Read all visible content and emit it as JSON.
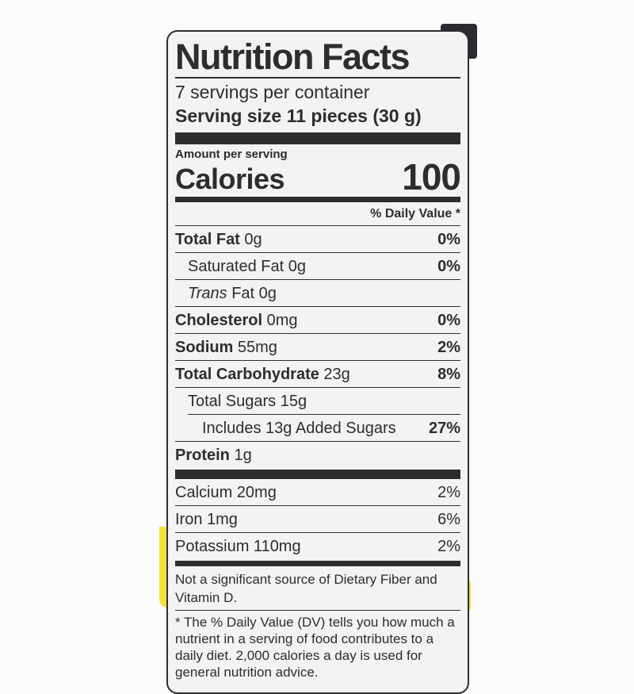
{
  "label": {
    "title": "Nutrition Facts",
    "servings_per_container": "7 servings per container",
    "serving_size": "Serving size 11 pieces (30 g)",
    "amount_per_serving": "Amount per serving",
    "calories_label": "Calories",
    "calories_value": "100",
    "daily_value_header": "% Daily Value *",
    "nutrients": [
      {
        "strong": "Total Fat",
        "normal": " 0g",
        "dv": "0%"
      },
      {
        "normal": "Saturated Fat 0g",
        "dv": "0%"
      },
      {
        "italic": "Trans",
        "normal": " Fat 0g",
        "dv": ""
      },
      {
        "strong": "Cholesterol",
        "normal": " 0mg",
        "dv": "0%"
      },
      {
        "strong": "Sodium",
        "normal": " 55mg",
        "dv": "2%"
      },
      {
        "strong": "Total Carbohydrate",
        "normal": " 23g",
        "dv": "8%"
      },
      {
        "normal": "Total Sugars 15g",
        "dv": ""
      },
      {
        "normal": "Includes 13g Added Sugars",
        "dv": "27%"
      },
      {
        "strong": "Protein",
        "normal": " 1g",
        "dv": ""
      }
    ],
    "minerals": [
      {
        "name": "Calcium 20mg",
        "dv": "2%"
      },
      {
        "name": "Iron 1mg",
        "dv": "6%"
      },
      {
        "name": "Potassium 110mg",
        "dv": "2%"
      }
    ],
    "not_significant": "Not a significant source of Dietary Fiber and Vitamin D.",
    "footnote": "* The % Daily Value (DV) tells you how much a nutrient in a serving of food contributes to a daily diet. 2,000 calories a day is used for general nutrition advice."
  },
  "colors": {
    "label_background": "#f3f3f5",
    "label_text": "#2d2d2f",
    "package_yellow": "#f0e23c",
    "corner_dark": "#2a2a32"
  }
}
